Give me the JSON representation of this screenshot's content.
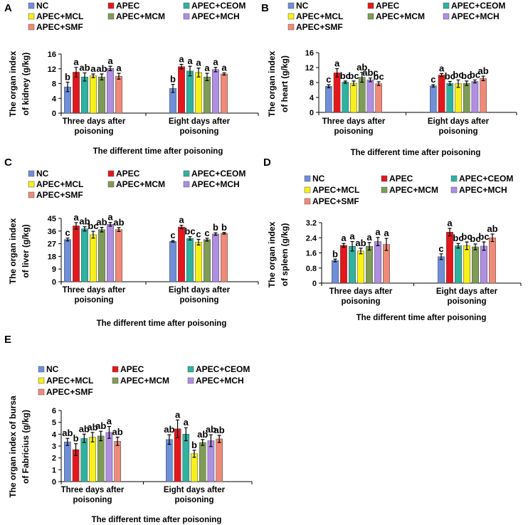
{
  "figure": {
    "colors": {
      "NC": "#6f8fd8",
      "APEC": "#e4171c",
      "APEC+CEOM": "#2db3a0",
      "APEC+MCL": "#f7f01a",
      "APEC+MCM": "#7e9c55",
      "APEC+MCH": "#b08ee3",
      "APEC+SMF": "#f08a78"
    }
  },
  "chart_data": [
    {
      "panel": "A",
      "type": "bar",
      "legend": [
        "NC",
        "APEC",
        "APEC+CEOM",
        "APEC+MCL",
        "APEC+MCM",
        "APEC+MCH",
        "APEC+SMF"
      ],
      "categories": [
        "Three days after poisoning",
        "Eight days after poisoning"
      ],
      "ylabel_line1": "The organ index",
      "ylabel_line2": "of kidney (g/kg)",
      "xlabel": "The different time after poisoning",
      "ylim": [
        0,
        16
      ],
      "yticks": [
        "0",
        "4",
        "8",
        "12",
        "16"
      ],
      "series": [
        {
          "name": "NC",
          "values": [
            7.1,
            6.7
          ],
          "errors": [
            1.3,
            1.1
          ],
          "letters": [
            "b",
            "b"
          ]
        },
        {
          "name": "APEC",
          "values": [
            11.1,
            12.6
          ],
          "errors": [
            1.3,
            0.6
          ],
          "letters": [
            "a",
            "a"
          ]
        },
        {
          "name": "APEC+CEOM",
          "values": [
            9.8,
            11.4
          ],
          "errors": [
            1.1,
            1.3
          ],
          "letters": [
            "ab",
            "a"
          ]
        },
        {
          "name": "APEC+MCL",
          "values": [
            10.1,
            11.0
          ],
          "errors": [
            0.5,
            1.2
          ],
          "letters": [
            "a",
            "a"
          ]
        },
        {
          "name": "APEC+MCM",
          "values": [
            9.8,
            9.8
          ],
          "errors": [
            0.8,
            1.0
          ],
          "letters": [
            "ab",
            "a"
          ]
        },
        {
          "name": "APEC+MCH",
          "values": [
            12.1,
            11.8
          ],
          "errors": [
            0.6,
            0.6
          ],
          "letters": [
            "a",
            "a"
          ]
        },
        {
          "name": "APEC+SMF",
          "values": [
            10.0,
            10.6
          ],
          "errors": [
            0.8,
            0.3
          ],
          "letters": [
            "a",
            "a"
          ]
        }
      ]
    },
    {
      "panel": "B",
      "type": "bar",
      "legend": [
        "NC",
        "APEC",
        "APEC+CEOM",
        "APEC+MCL",
        "APEC+MCM",
        "APEC+MCH",
        "APEC+SMF"
      ],
      "categories": [
        "Three days after poisoning",
        "Eight days after poisoning"
      ],
      "ylabel_line1": "The organ index",
      "ylabel_line2": "of heart (g/kg)",
      "xlabel": "The different time after poisoning",
      "ylim": [
        0,
        16
      ],
      "yticks": [
        "0",
        "4",
        "8",
        "12",
        "16"
      ],
      "series": [
        {
          "name": "NC",
          "values": [
            7.0,
            7.1
          ],
          "errors": [
            0.4,
            0.3
          ],
          "letters": [
            "c",
            "c"
          ]
        },
        {
          "name": "APEC",
          "values": [
            10.6,
            10.0
          ],
          "errors": [
            1.1,
            0.4
          ],
          "letters": [
            "a",
            "a"
          ]
        },
        {
          "name": "APEC+CEOM",
          "values": [
            8.1,
            7.8
          ],
          "errors": [
            0.3,
            0.5
          ],
          "letters": [
            "bc",
            "bc"
          ]
        },
        {
          "name": "APEC+MCL",
          "values": [
            7.8,
            7.7
          ],
          "errors": [
            0.6,
            1.0
          ],
          "letters": [
            "bc",
            "bc"
          ]
        },
        {
          "name": "APEC+MCM",
          "values": [
            9.4,
            7.8
          ],
          "errors": [
            1.3,
            0.6
          ],
          "letters": [
            "ab",
            "bc"
          ]
        },
        {
          "name": "APEC+MCH",
          "values": [
            8.7,
            8.3
          ],
          "errors": [
            0.5,
            0.4
          ],
          "letters": [
            "abc",
            "bc"
          ]
        },
        {
          "name": "APEC+SMF",
          "values": [
            7.7,
            9.1
          ],
          "errors": [
            0.5,
            0.6
          ],
          "letters": [
            "bc",
            "ab"
          ]
        }
      ]
    },
    {
      "panel": "C",
      "type": "bar",
      "legend": [
        "NC",
        "APEC",
        "APEC+CEOM",
        "APEC+MCL",
        "APEC+MCM",
        "APEC+MCH",
        "APEC+SMF"
      ],
      "categories": [
        "Three days after poisoning",
        "Eight days after poisoning"
      ],
      "ylabel_line1": "The organ index",
      "ylabel_line2": "of liver (g/kg)",
      "xlabel": "The different time after poisoning",
      "ylim": [
        0,
        45
      ],
      "yticks": [
        "0",
        "9",
        "18",
        "27",
        "36",
        "45"
      ],
      "series": [
        {
          "name": "NC",
          "values": [
            30.0,
            28.7
          ],
          "errors": [
            1.0,
            0.6
          ],
          "letters": [
            "c",
            "c"
          ]
        },
        {
          "name": "APEC",
          "values": [
            39.7,
            38.9
          ],
          "errors": [
            2.3,
            1.2
          ],
          "letters": [
            "a",
            "a"
          ]
        },
        {
          "name": "APEC+CEOM",
          "values": [
            37.6,
            30.8
          ],
          "errors": [
            1.5,
            1.2
          ],
          "letters": [
            "ab",
            "bc"
          ]
        },
        {
          "name": "APEC+MCL",
          "values": [
            33.4,
            28.1
          ],
          "errors": [
            2.4,
            2.0
          ],
          "letters": [
            "bc",
            "c"
          ]
        },
        {
          "name": "APEC+MCM",
          "values": [
            37.0,
            29.9
          ],
          "errors": [
            1.6,
            1.0
          ],
          "letters": [
            "ab",
            "c"
          ]
        },
        {
          "name": "APEC+MCH",
          "values": [
            40.8,
            33.9
          ],
          "errors": [
            1.3,
            0.9
          ],
          "letters": [
            "a",
            "b"
          ]
        },
        {
          "name": "APEC+SMF",
          "values": [
            37.1,
            34.4
          ],
          "errors": [
            1.4,
            0.6
          ],
          "letters": [
            "ab",
            "b"
          ]
        }
      ]
    },
    {
      "panel": "D",
      "type": "bar",
      "legend": [
        "NC",
        "APEC",
        "APEC+CEOM",
        "APEC+MCL",
        "APEC+MCM",
        "APEC+MCH",
        "APEC+SMF"
      ],
      "categories": [
        "Three days after poisoning",
        "Eight days after poisoning"
      ],
      "ylabel_line1": "The organ index",
      "ylabel_line2": "of spleen (g/kg)",
      "xlabel": "The different time after poisoning",
      "ylim": [
        0,
        3.2
      ],
      "yticks": [
        "0",
        "0.8",
        "1.6",
        "2.4",
        "3.2"
      ],
      "series": [
        {
          "name": "NC",
          "values": [
            1.2,
            1.4
          ],
          "errors": [
            0.07,
            0.15
          ],
          "letters": [
            "b",
            "c"
          ]
        },
        {
          "name": "APEC",
          "values": [
            2.0,
            2.7
          ],
          "errors": [
            0.1,
            0.2
          ],
          "letters": [
            "a",
            "a"
          ]
        },
        {
          "name": "APEC+CEOM",
          "values": [
            1.95,
            1.98
          ],
          "errors": [
            0.25,
            0.12
          ],
          "letters": [
            "a",
            "bc"
          ]
        },
        {
          "name": "APEC+MCL",
          "values": [
            1.7,
            1.98
          ],
          "errors": [
            0.15,
            0.2
          ],
          "letters": [
            "ab",
            "bc"
          ]
        },
        {
          "name": "APEC+MCM",
          "values": [
            1.95,
            1.92
          ],
          "errors": [
            0.2,
            0.15
          ],
          "letters": [
            "a",
            "bc"
          ]
        },
        {
          "name": "APEC+MCH",
          "values": [
            2.2,
            1.96
          ],
          "errors": [
            0.22,
            0.22
          ],
          "letters": [
            "a",
            "bc"
          ]
        },
        {
          "name": "APEC+SMF",
          "values": [
            2.05,
            2.4
          ],
          "errors": [
            0.32,
            0.2
          ],
          "letters": [
            "a",
            "ab"
          ]
        }
      ]
    },
    {
      "panel": "E",
      "type": "bar",
      "legend": [
        "NC",
        "APEC",
        "APEC+CEOM",
        "APEC+MCL",
        "APEC+MCM",
        "APEC+MCH",
        "APEC+SMF"
      ],
      "categories": [
        "Three days after poisoning",
        "Eight days after poisoning"
      ],
      "ylabel_line1": "The organ index of bursa",
      "ylabel_line2": "of Fabricius (g/kg)",
      "xlabel": "The different time after poisoning",
      "ylim": [
        0,
        6
      ],
      "yticks": [
        "0",
        "1",
        "2",
        "3",
        "4",
        "5",
        "6"
      ],
      "series": [
        {
          "name": "NC",
          "values": [
            3.35,
            3.55
          ],
          "errors": [
            0.3,
            0.4
          ],
          "letters": [
            "ab",
            "ab"
          ]
        },
        {
          "name": "APEC",
          "values": [
            2.7,
            4.45
          ],
          "errors": [
            0.5,
            0.75
          ],
          "letters": [
            "b",
            "a"
          ]
        },
        {
          "name": "APEC+CEOM",
          "values": [
            3.65,
            4.0
          ],
          "errors": [
            0.35,
            0.55
          ],
          "letters": [
            "ab",
            "a"
          ]
        },
        {
          "name": "APEC+MCL",
          "values": [
            3.75,
            2.35
          ],
          "errors": [
            0.4,
            0.3
          ],
          "letters": [
            "ab",
            "b"
          ]
        },
        {
          "name": "APEC+MCM",
          "values": [
            3.85,
            3.3
          ],
          "errors": [
            0.4,
            0.25
          ],
          "letters": [
            "ab",
            "ab"
          ]
        },
        {
          "name": "APEC+MCH",
          "values": [
            4.15,
            3.45
          ],
          "errors": [
            0.5,
            0.5
          ],
          "letters": [
            "a",
            "ab"
          ]
        },
        {
          "name": "APEC+SMF",
          "values": [
            3.4,
            3.6
          ],
          "errors": [
            0.35,
            0.3
          ],
          "letters": [
            "ab",
            "ab"
          ]
        }
      ]
    }
  ]
}
